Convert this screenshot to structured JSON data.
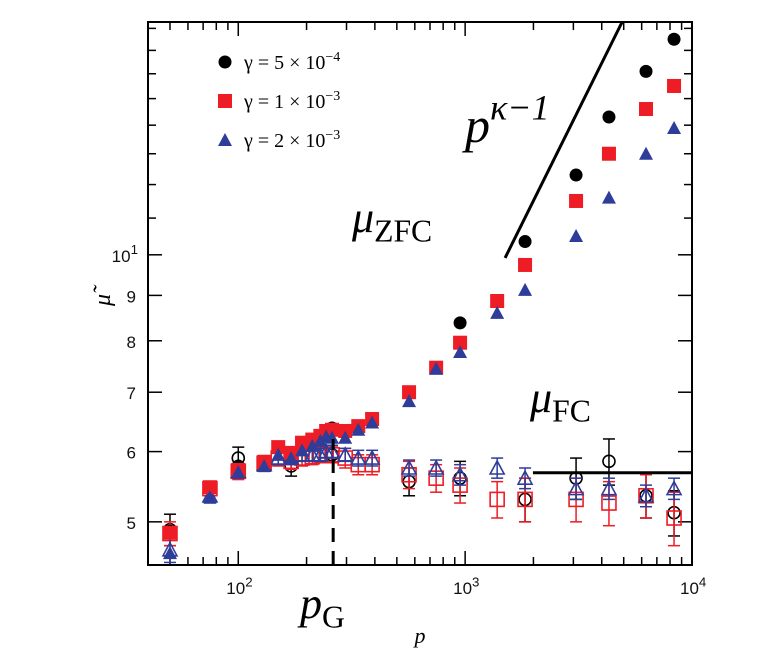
{
  "chart_data": {
    "type": "scatter",
    "xlabel": "p",
    "ylabel": "μ̃",
    "xscale": "log",
    "yscale": "log",
    "xlim": [
      40,
      10000
    ],
    "ylim": [
      4.47,
      18.3
    ],
    "x_ticks": [
      {
        "v": 100,
        "base": "10",
        "exp": "2"
      },
      {
        "v": 1000,
        "base": "10",
        "exp": "3"
      },
      {
        "v": 10000,
        "base": "10",
        "exp": "4"
      }
    ],
    "y_ticks": [
      {
        "v": 5,
        "label": "5"
      },
      {
        "v": 6,
        "label": "6"
      },
      {
        "v": 7,
        "label": "7"
      },
      {
        "v": 8,
        "label": "8"
      },
      {
        "v": 9,
        "label": "9"
      },
      {
        "v": 10,
        "base": "10",
        "exp": "1"
      }
    ],
    "legend_placement": "top-left",
    "legend": [
      {
        "prefix": "γ = 5 × 10",
        "exp": "−4",
        "color": "#000000",
        "marker": "circle"
      },
      {
        "prefix": "γ = 1 × 10",
        "exp": "−3",
        "color": "#ee1c25",
        "marker": "square"
      },
      {
        "prefix": "γ = 2 × 10",
        "exp": "−3",
        "color": "#2e3d9a",
        "marker": "triangle"
      }
    ],
    "annotations": {
      "zfc": {
        "main": "μ",
        "sub": "ZFC"
      },
      "fc": {
        "main": "μ",
        "sub": "FC"
      },
      "power": {
        "main": "p",
        "sup": "κ−1"
      },
      "pg": {
        "main": "p",
        "sub": "G"
      }
    },
    "power_law_line": [
      [
        1500,
        9.92
      ],
      [
        4920,
        18.3
      ]
    ],
    "fc_level_line": {
      "y": 5.68,
      "x": [
        1990,
        10000
      ]
    },
    "pg_value": 262,
    "zfc_series": [
      {
        "color": "#000000",
        "marker": "circle",
        "points": [
          [
            50,
            4.88
          ],
          [
            100,
            5.78
          ],
          [
            171,
            5.95
          ],
          [
            259,
            6.38
          ],
          [
            950,
            8.38
          ],
          [
            1837,
            10.35
          ],
          [
            3083,
            12.3
          ],
          [
            4305,
            14.3
          ],
          [
            6270,
            16.1
          ],
          [
            8334,
            17.5
          ]
        ]
      },
      {
        "color": "#ee1c25",
        "marker": "square",
        "points": [
          [
            50,
            4.86
          ],
          [
            75,
            5.47
          ],
          [
            100,
            5.72
          ],
          [
            130,
            5.84
          ],
          [
            150,
            6.07
          ],
          [
            171,
            5.98
          ],
          [
            191,
            6.14
          ],
          [
            212,
            6.19
          ],
          [
            230,
            6.25
          ],
          [
            244,
            6.33
          ],
          [
            259,
            6.35
          ],
          [
            296,
            6.33
          ],
          [
            338,
            6.41
          ],
          [
            389,
            6.53
          ],
          [
            566,
            7.0
          ],
          [
            745,
            7.46
          ],
          [
            950,
            7.96
          ],
          [
            1384,
            8.87
          ],
          [
            1837,
            9.74
          ],
          [
            3083,
            11.5
          ],
          [
            4305,
            13.0
          ],
          [
            6270,
            14.6
          ],
          [
            8334,
            15.5
          ]
        ]
      },
      {
        "color": "#2e3d9a",
        "marker": "triangle",
        "points": [
          [
            50,
            4.61
          ],
          [
            75,
            5.33
          ],
          [
            100,
            5.69
          ],
          [
            130,
            5.78
          ],
          [
            150,
            5.95
          ],
          [
            171,
            5.9
          ],
          [
            191,
            6.02
          ],
          [
            212,
            6.09
          ],
          [
            230,
            6.17
          ],
          [
            244,
            6.24
          ],
          [
            259,
            6.22
          ],
          [
            296,
            6.22
          ],
          [
            338,
            6.35
          ],
          [
            389,
            6.47
          ],
          [
            566,
            6.84
          ],
          [
            745,
            7.44
          ],
          [
            950,
            7.77
          ],
          [
            1384,
            8.6
          ],
          [
            1837,
            9.13
          ],
          [
            3083,
            10.5
          ],
          [
            4305,
            11.6
          ],
          [
            6270,
            13.0
          ],
          [
            8334,
            13.9
          ]
        ]
      }
    ],
    "fc_series": [
      {
        "color": "#000000",
        "marker": "circle",
        "points": [
          [
            50,
            4.9,
            0.2
          ],
          [
            100,
            5.9,
            0.17
          ],
          [
            171,
            5.78,
            0.15
          ],
          [
            259,
            5.95,
            0.12
          ],
          [
            566,
            5.55,
            0.2
          ],
          [
            950,
            5.6,
            0.25
          ],
          [
            1837,
            5.3,
            0.3
          ],
          [
            3083,
            5.6,
            0.3
          ],
          [
            4305,
            5.85,
            0.35
          ],
          [
            6270,
            5.35,
            0.3
          ],
          [
            8334,
            5.12,
            0.3
          ]
        ]
      },
      {
        "color": "#ee1c25",
        "marker": "square",
        "points": [
          [
            50,
            4.85,
            0.15
          ],
          [
            75,
            5.45,
            0.1
          ],
          [
            100,
            5.7,
            0.12
          ],
          [
            130,
            5.82,
            0.12
          ],
          [
            150,
            5.9,
            0.12
          ],
          [
            171,
            5.85,
            0.12
          ],
          [
            191,
            5.9,
            0.12
          ],
          [
            212,
            5.92,
            0.12
          ],
          [
            230,
            5.95,
            0.12
          ],
          [
            244,
            5.95,
            0.12
          ],
          [
            259,
            5.95,
            0.12
          ],
          [
            296,
            5.9,
            0.15
          ],
          [
            338,
            5.8,
            0.15
          ],
          [
            389,
            5.8,
            0.15
          ],
          [
            566,
            5.65,
            0.2
          ],
          [
            745,
            5.6,
            0.2
          ],
          [
            950,
            5.5,
            0.25
          ],
          [
            1384,
            5.3,
            0.25
          ],
          [
            1837,
            5.3,
            0.3
          ],
          [
            3083,
            5.3,
            0.3
          ],
          [
            4305,
            5.25,
            0.3
          ],
          [
            6270,
            5.35,
            0.3
          ],
          [
            8334,
            5.05,
            0.35
          ]
        ]
      },
      {
        "color": "#2e3d9a",
        "marker": "triangle",
        "points": [
          [
            50,
            4.65,
            0.15
          ],
          [
            75,
            5.35,
            0.1
          ],
          [
            100,
            5.7,
            0.1
          ],
          [
            130,
            5.8,
            0.1
          ],
          [
            150,
            5.9,
            0.1
          ],
          [
            171,
            5.9,
            0.1
          ],
          [
            191,
            5.95,
            0.1
          ],
          [
            212,
            5.95,
            0.1
          ],
          [
            230,
            5.95,
            0.1
          ],
          [
            244,
            6.0,
            0.1
          ],
          [
            259,
            6.0,
            0.1
          ],
          [
            296,
            5.95,
            0.1
          ],
          [
            338,
            5.9,
            0.12
          ],
          [
            389,
            5.9,
            0.12
          ],
          [
            566,
            5.75,
            0.12
          ],
          [
            745,
            5.75,
            0.12
          ],
          [
            950,
            5.65,
            0.15
          ],
          [
            1384,
            5.75,
            0.15
          ],
          [
            1837,
            5.6,
            0.15
          ],
          [
            3083,
            5.45,
            0.15
          ],
          [
            4305,
            5.45,
            0.15
          ],
          [
            6270,
            5.35,
            0.15
          ],
          [
            8334,
            5.45,
            0.15
          ]
        ]
      }
    ]
  }
}
